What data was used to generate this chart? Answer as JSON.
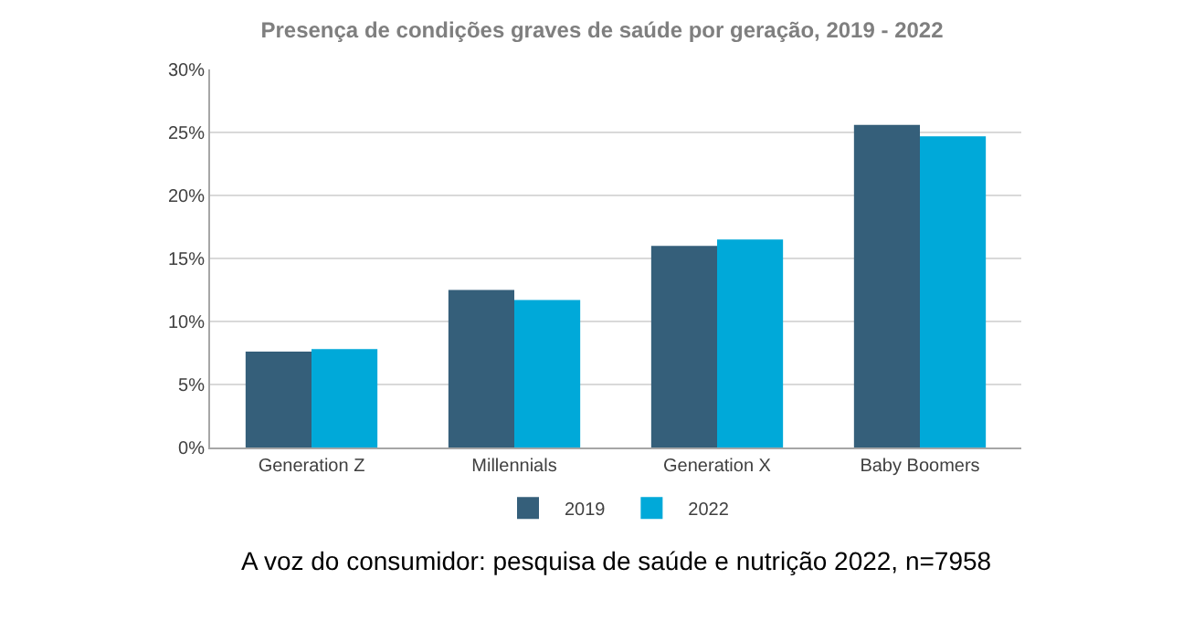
{
  "chart_data": {
    "type": "bar",
    "title": "Presença de condições graves de saúde por geração, 2019 - 2022",
    "categories": [
      "Generation Z",
      "Millennials",
      "Generation X",
      "Baby Boomers"
    ],
    "series": [
      {
        "name": "2019",
        "color": "#355f7a",
        "values": [
          7.6,
          12.5,
          16.0,
          25.6
        ]
      },
      {
        "name": "2022",
        "color": "#00a9d9",
        "values": [
          7.8,
          11.7,
          16.5,
          24.7
        ]
      }
    ],
    "ylim": [
      0,
      30
    ],
    "yticks": [
      {
        "value": 0,
        "label": "0%"
      },
      {
        "value": 5,
        "label": "5%"
      },
      {
        "value": 10,
        "label": "10%"
      },
      {
        "value": 15,
        "label": "15%"
      },
      {
        "value": 20,
        "label": "20%"
      },
      {
        "value": 25,
        "label": "25%"
      },
      {
        "value": 30,
        "label": "30%"
      }
    ],
    "grid": "y",
    "legend": "bottom",
    "annotations": [
      "A voz do consumidor: pesquisa de saúde e nutrição 2022, n=7958"
    ]
  }
}
